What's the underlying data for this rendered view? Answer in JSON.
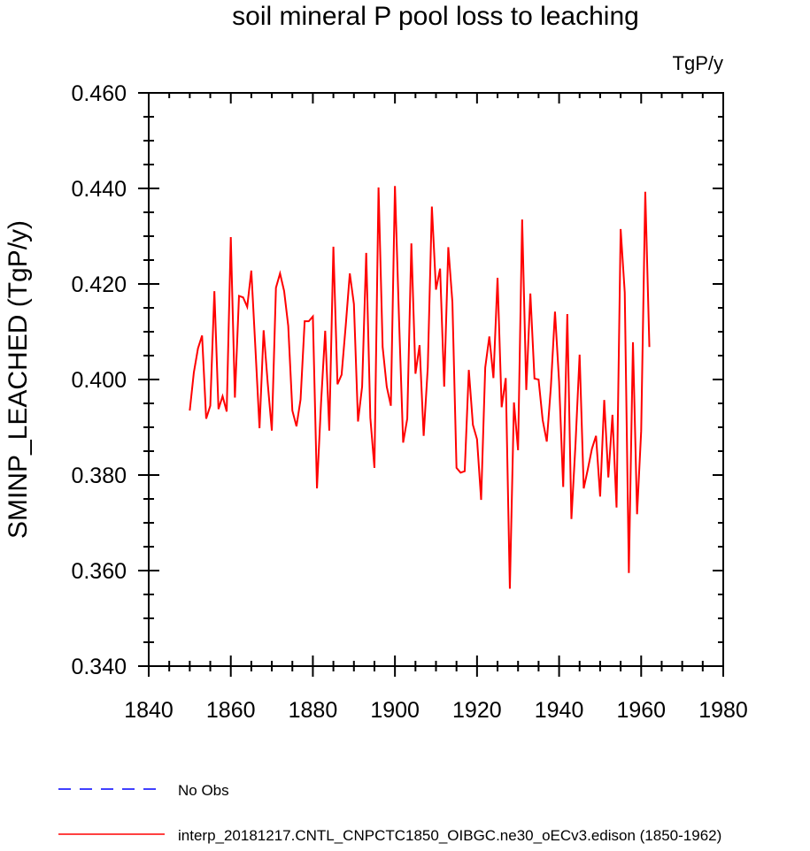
{
  "chart_data": {
    "type": "line",
    "title": "soil mineral P pool loss to leaching",
    "units_label": "TgP/y",
    "xlabel": "",
    "ylabel": "SMINP_LEACHED  (TgP/y)",
    "xlim": [
      1840,
      1980
    ],
    "ylim": [
      0.34,
      0.46
    ],
    "x_ticks": [
      1840,
      1860,
      1880,
      1900,
      1920,
      1940,
      1960,
      1980
    ],
    "x_tick_labels": [
      "1840",
      "1860",
      "1880",
      "1900",
      "1920",
      "1940",
      "1960",
      "1980"
    ],
    "y_ticks": [
      0.34,
      0.36,
      0.38,
      0.4,
      0.42,
      0.44,
      0.46
    ],
    "y_tick_labels": [
      "0.340",
      "0.360",
      "0.380",
      "0.400",
      "0.420",
      "0.440",
      "0.460"
    ],
    "grid": false,
    "legend_position": "bottom",
    "series": [
      {
        "name": "interp_20181217.CNTL_CNPCTC1850_OIBGC.ne30_oECv3.edison (1850-1962)",
        "color": "#ff0000",
        "style": "solid",
        "x_start": 1850,
        "x_step": 1,
        "values": [
          0.3935,
          0.4015,
          0.4065,
          0.4092,
          0.3918,
          0.3945,
          0.4185,
          0.3938,
          0.3965,
          0.3933,
          0.4298,
          0.3962,
          0.4175,
          0.4172,
          0.4152,
          0.4228,
          0.4065,
          0.3898,
          0.4103,
          0.3992,
          0.3893,
          0.4192,
          0.4222,
          0.4185,
          0.4112,
          0.3935,
          0.3902,
          0.3958,
          0.4122,
          0.4122,
          0.4132,
          0.3772,
          0.3952,
          0.4102,
          0.3893,
          0.4278,
          0.399,
          0.401,
          0.4112,
          0.4222,
          0.4158,
          0.3912,
          0.3985,
          0.4265,
          0.392,
          0.3815,
          0.4402,
          0.4068,
          0.3985,
          0.3945,
          0.4405,
          0.4125,
          0.3868,
          0.3918,
          0.4285,
          0.4012,
          0.4072,
          0.3882,
          0.4025,
          0.4362,
          0.4188,
          0.4232,
          0.3985,
          0.4277,
          0.4162,
          0.3815,
          0.3805,
          0.3808,
          0.402,
          0.3905,
          0.3875,
          0.3748,
          0.4025,
          0.409,
          0.4003,
          0.4213,
          0.3942,
          0.4003,
          0.3562,
          0.3952,
          0.3852,
          0.4335,
          0.3978,
          0.418,
          0.4002,
          0.4,
          0.3915,
          0.387,
          0.3985,
          0.4142,
          0.3995,
          0.3775,
          0.4137,
          0.3708,
          0.3865,
          0.4052,
          0.3772,
          0.3812,
          0.3855,
          0.3882,
          0.3755,
          0.3957,
          0.3795,
          0.3926,
          0.3732,
          0.4315,
          0.4182,
          0.3595,
          0.4078,
          0.3718,
          0.3892,
          0.4393,
          0.4068
        ]
      },
      {
        "name": "No Obs",
        "color": "#0000ff",
        "style": "dashed",
        "values": []
      }
    ]
  }
}
